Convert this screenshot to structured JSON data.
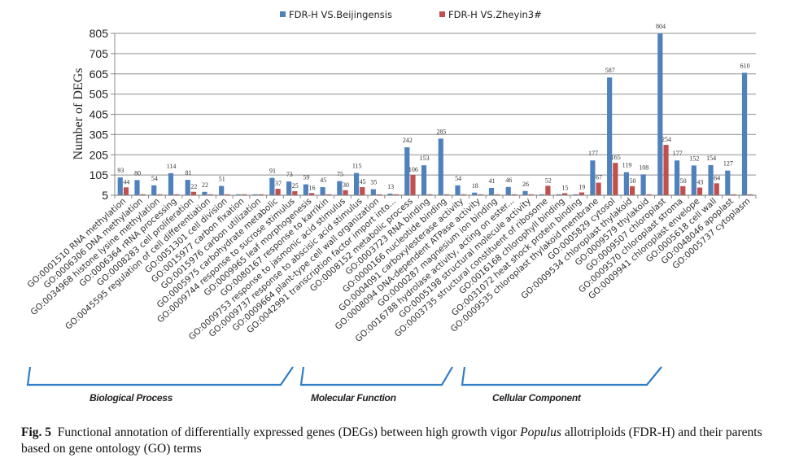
{
  "chart_data": {
    "type": "bar",
    "title": "",
    "xlabel": "",
    "ylabel": "Number of DEGs",
    "ylim": [
      5,
      805
    ],
    "yticks": [
      5,
      105,
      205,
      305,
      405,
      505,
      605,
      705,
      805
    ],
    "grid": true,
    "legend_position": "top-center",
    "categories": [
      "GO:0001510 RNA methylation",
      "GO:0006306 DNA methylation",
      "GO:0034968 histone lysine methylation",
      "GO:0006364 rRNA processing",
      "GO:0008283 cell proliferation",
      "GO:0045595 regulation of cell differentiation",
      "GO:0051301 cell division",
      "GO:0015977 carbon fixation",
      "GO:0015976 carbon utilization",
      "GO:0005975 carbohydrate metabolic",
      "GO:0009744 response to sucrose stimulus",
      "GO:0009965 leaf morphogenesis",
      "GO:0080167 response to karrikin",
      "GO:0009753 response to jasmonic acid stimulus",
      "GO:0009737 response to abscisic acid stimulus",
      "GO:0009664 plant-type cell wall organization",
      "GO:0042991 transcription factor import into...",
      "GO:0008152 metabolic process",
      "GO:0003723 RNA binding",
      "GO:0000166 nucleotide binding",
      "GO:0004091 carboxylesterase activity",
      "GO:0008094 DNA-dependent ATPase activity",
      "GO:0000287 magnesium ion binding",
      "GO:0016788 hydrolase activity, acting on ester...",
      "GO:0005198 structural molecule activity",
      "GO:0003735 structural constituent of ribosome",
      "GO:0016168 chlorophyll binding",
      "GO:0031072 heat shock protein binding",
      "GO:0009535 chloroplast thylakoid membrane",
      "GO:0005829 cytosol",
      "GO:0009534 chloroplast thylakoid",
      "GO:0009579 thylakoid",
      "GO:0009507 chloroplast",
      "GO:0009570 chloroplast stroma",
      "GO:0009941 chloroplast envelope",
      "GO:0005618 cell wall",
      "GO:0048046 apoplast",
      "GO:0005737 cytoplasm"
    ],
    "series": [
      {
        "name": "FDR-H VS.Beijingensis",
        "color": "#4f81bd",
        "values": [
          93,
          80,
          54,
          114,
          81,
          22,
          51,
          0,
          0,
          91,
          73,
          59,
          45,
          75,
          115,
          35,
          13,
          242,
          153,
          285,
          54,
          18,
          41,
          46,
          26,
          0,
          0,
          0,
          177,
          587,
          119,
          108,
          804,
          177,
          152,
          154,
          127,
          610
        ],
        "labels": [
          "93",
          "80",
          "54",
          "114",
          "81",
          "22",
          "51",
          "",
          "",
          "91",
          "73",
          "59",
          "45",
          "75",
          "115",
          "35",
          "13",
          "242",
          "153",
          "285",
          "54",
          "18",
          "41",
          "46",
          "26",
          "",
          "",
          "",
          "177",
          "587",
          "119",
          "108",
          "804",
          "177",
          "152",
          "154",
          "127",
          "610"
        ]
      },
      {
        "name": "FDR-H VS.Zheyin3#",
        "color": "#c0504d",
        "values": [
          44,
          0,
          0,
          0,
          22,
          0,
          0,
          0,
          0,
          37,
          25,
          16,
          0,
          30,
          45,
          0,
          0,
          106,
          0,
          0,
          0,
          0,
          0,
          0,
          0,
          52,
          15,
          19,
          67,
          165,
          50,
          0,
          254,
          50,
          43,
          64,
          0,
          0
        ],
        "labels": [
          "44",
          "",
          "",
          "",
          "22",
          "",
          "",
          "",
          "",
          "37",
          "25",
          "16",
          "",
          "30",
          "45",
          "",
          "",
          "106",
          "",
          "",
          "",
          "",
          "",
          "",
          "",
          "52",
          "15",
          "19",
          "67",
          "165",
          "50",
          "",
          "254",
          "50",
          "43",
          "64",
          "",
          ""
        ]
      }
    ],
    "groups": [
      {
        "name": "Biological Process",
        "first": 0,
        "last": 16
      },
      {
        "name": "Molecular Function",
        "first": 17,
        "last": 27
      },
      {
        "name": "Cellular Component",
        "first": 28,
        "last": 37
      }
    ]
  },
  "groups_labels": {
    "bp": "Biological Process",
    "mf": "Molecular Function",
    "cc": "Cellular Component"
  },
  "caption": {
    "fig": "Fig. 5",
    "text_before": "Functional annotation of differentially expressed genes (DEGs) between high growth vigor ",
    "italic": "Populus",
    "text_after": " allotriploids (FDR-H) and their parents based on gene ontology (GO) terms"
  }
}
